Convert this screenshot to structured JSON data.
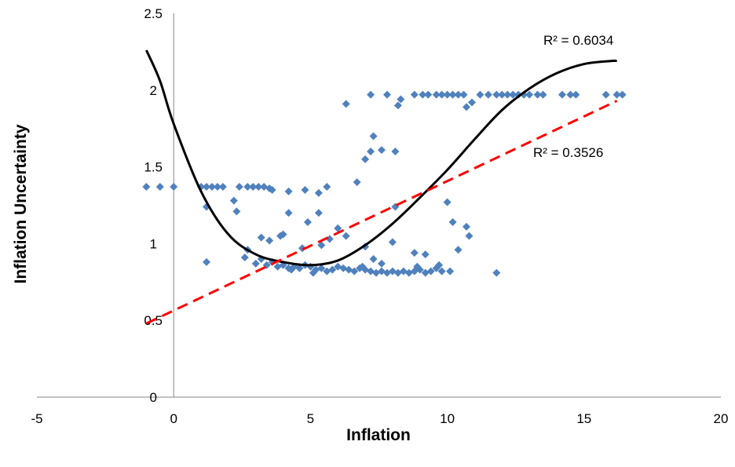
{
  "chart_data": {
    "type": "scatter",
    "title": "",
    "xlabel": "Inflation",
    "ylabel": "Inflation Uncertainty",
    "xlim": [
      -5,
      20
    ],
    "ylim": [
      0,
      2.5
    ],
    "x_ticks": [
      -5,
      0,
      5,
      10,
      15,
      20
    ],
    "y_ticks": [
      0,
      0.5,
      1,
      1.5,
      2,
      2.5
    ],
    "x_tick_labels": [
      "-5",
      "0",
      "5",
      "10",
      "15",
      "20"
    ],
    "y_tick_labels": [
      "0",
      "0.5",
      "1",
      "1.5",
      "2",
      "2.5"
    ],
    "grid": false,
    "legend": "none",
    "marker_color": "#4F81BD",
    "series": [
      {
        "marker": "diamond",
        "points": [
          [
            -1.0,
            1.37
          ],
          [
            -0.5,
            1.37
          ],
          [
            0.0,
            1.37
          ],
          [
            1.0,
            1.37
          ],
          [
            1.2,
            1.37
          ],
          [
            1.4,
            1.37
          ],
          [
            1.6,
            1.37
          ],
          [
            1.8,
            1.37
          ],
          [
            2.4,
            1.37
          ],
          [
            2.7,
            1.37
          ],
          [
            2.9,
            1.37
          ],
          [
            3.1,
            1.37
          ],
          [
            3.3,
            1.37
          ],
          [
            3.5,
            1.36
          ],
          [
            3.6,
            1.35
          ],
          [
            1.2,
            1.24
          ],
          [
            2.2,
            1.28
          ],
          [
            2.3,
            1.21
          ],
          [
            4.2,
            1.34
          ],
          [
            4.8,
            1.35
          ],
          [
            5.3,
            1.33
          ],
          [
            5.6,
            1.37
          ],
          [
            1.2,
            0.88
          ],
          [
            2.6,
            0.91
          ],
          [
            2.7,
            0.96
          ],
          [
            3.2,
            1.04
          ],
          [
            3.5,
            1.02
          ],
          [
            3.9,
            1.05
          ],
          [
            4.0,
            1.06
          ],
          [
            4.2,
            1.2
          ],
          [
            4.7,
            0.97
          ],
          [
            4.9,
            1.14
          ],
          [
            5.3,
            1.2
          ],
          [
            5.4,
            0.99
          ],
          [
            5.7,
            1.03
          ],
          [
            6.0,
            1.1
          ],
          [
            6.3,
            1.05
          ],
          [
            7.0,
            0.98
          ],
          [
            8.0,
            1.01
          ],
          [
            8.1,
            1.24
          ],
          [
            8.8,
            0.94
          ],
          [
            9.2,
            0.93
          ],
          [
            10.0,
            1.27
          ],
          [
            10.2,
            1.14
          ],
          [
            10.4,
            0.96
          ],
          [
            10.7,
            1.11
          ],
          [
            10.8,
            1.05
          ],
          [
            3.0,
            0.87
          ],
          [
            3.2,
            0.9
          ],
          [
            3.4,
            0.86
          ],
          [
            3.6,
            0.88
          ],
          [
            3.8,
            0.85
          ],
          [
            4.0,
            0.86
          ],
          [
            4.2,
            0.84
          ],
          [
            4.4,
            0.85
          ],
          [
            4.6,
            0.84
          ],
          [
            4.8,
            0.86
          ],
          [
            5.0,
            0.85
          ],
          [
            5.2,
            0.83
          ],
          [
            5.4,
            0.84
          ],
          [
            5.6,
            0.82
          ],
          [
            5.8,
            0.83
          ],
          [
            6.0,
            0.85
          ],
          [
            6.2,
            0.84
          ],
          [
            6.4,
            0.83
          ],
          [
            6.6,
            0.82
          ],
          [
            6.8,
            0.84
          ],
          [
            7.0,
            0.83
          ],
          [
            7.2,
            0.82
          ],
          [
            7.4,
            0.81
          ],
          [
            7.6,
            0.82
          ],
          [
            7.8,
            0.81
          ],
          [
            8.0,
            0.82
          ],
          [
            8.2,
            0.81
          ],
          [
            8.4,
            0.82
          ],
          [
            8.6,
            0.81
          ],
          [
            8.8,
            0.82
          ],
          [
            9.0,
            0.83
          ],
          [
            9.2,
            0.81
          ],
          [
            9.4,
            0.82
          ],
          [
            9.6,
            0.84
          ],
          [
            9.8,
            0.82
          ],
          [
            10.1,
            0.82
          ],
          [
            11.8,
            0.81
          ],
          [
            4.3,
            0.83
          ],
          [
            5.1,
            0.81
          ],
          [
            6.9,
            0.85
          ],
          [
            7.3,
            0.9
          ],
          [
            7.6,
            0.87
          ],
          [
            8.9,
            0.85
          ],
          [
            9.7,
            0.86
          ],
          [
            6.7,
            1.4
          ],
          [
            7.0,
            1.55
          ],
          [
            7.2,
            1.6
          ],
          [
            7.3,
            1.7
          ],
          [
            7.6,
            1.61
          ],
          [
            8.1,
            1.6
          ],
          [
            6.3,
            1.91
          ],
          [
            7.2,
            1.97
          ],
          [
            7.8,
            1.97
          ],
          [
            8.2,
            1.9
          ],
          [
            8.3,
            1.94
          ],
          [
            8.8,
            1.97
          ],
          [
            9.1,
            1.97
          ],
          [
            9.3,
            1.97
          ],
          [
            9.6,
            1.97
          ],
          [
            9.8,
            1.97
          ],
          [
            10.0,
            1.97
          ],
          [
            10.2,
            1.97
          ],
          [
            10.4,
            1.97
          ],
          [
            10.6,
            1.97
          ],
          [
            10.7,
            1.89
          ],
          [
            10.9,
            1.92
          ],
          [
            11.2,
            1.97
          ],
          [
            11.5,
            1.97
          ],
          [
            11.8,
            1.97
          ],
          [
            12.0,
            1.97
          ],
          [
            12.2,
            1.97
          ],
          [
            12.4,
            1.97
          ],
          [
            12.6,
            1.97
          ],
          [
            12.8,
            1.97
          ],
          [
            13.0,
            1.97
          ],
          [
            13.3,
            1.97
          ],
          [
            13.5,
            1.97
          ],
          [
            14.2,
            1.97
          ],
          [
            14.5,
            1.97
          ],
          [
            14.7,
            1.97
          ],
          [
            15.8,
            1.97
          ],
          [
            16.2,
            1.97
          ],
          [
            16.4,
            1.97
          ]
        ]
      }
    ],
    "trendlines": [
      {
        "kind": "polynomial",
        "color": "#000000",
        "style": "solid",
        "label": "R² = 0.6034",
        "points": [
          [
            -1.0,
            2.26
          ],
          [
            -0.5,
            2.06
          ],
          [
            0.0,
            1.78
          ],
          [
            1.0,
            1.34
          ],
          [
            2.0,
            1.06
          ],
          [
            3.0,
            0.93
          ],
          [
            4.0,
            0.88
          ],
          [
            5.0,
            0.86
          ],
          [
            6.0,
            0.89
          ],
          [
            7.0,
            0.99
          ],
          [
            8.0,
            1.13
          ],
          [
            9.0,
            1.3
          ],
          [
            10.0,
            1.48
          ],
          [
            11.0,
            1.68
          ],
          [
            12.0,
            1.87
          ],
          [
            13.0,
            2.01
          ],
          [
            14.0,
            2.11
          ],
          [
            15.0,
            2.17
          ],
          [
            16.0,
            2.19
          ],
          [
            16.2,
            2.19
          ]
        ]
      },
      {
        "kind": "linear",
        "color": "#FF0000",
        "style": "dashed",
        "label": "R² = 0.3526",
        "points": [
          [
            -1.0,
            0.48
          ],
          [
            16.2,
            1.93
          ]
        ]
      }
    ]
  }
}
